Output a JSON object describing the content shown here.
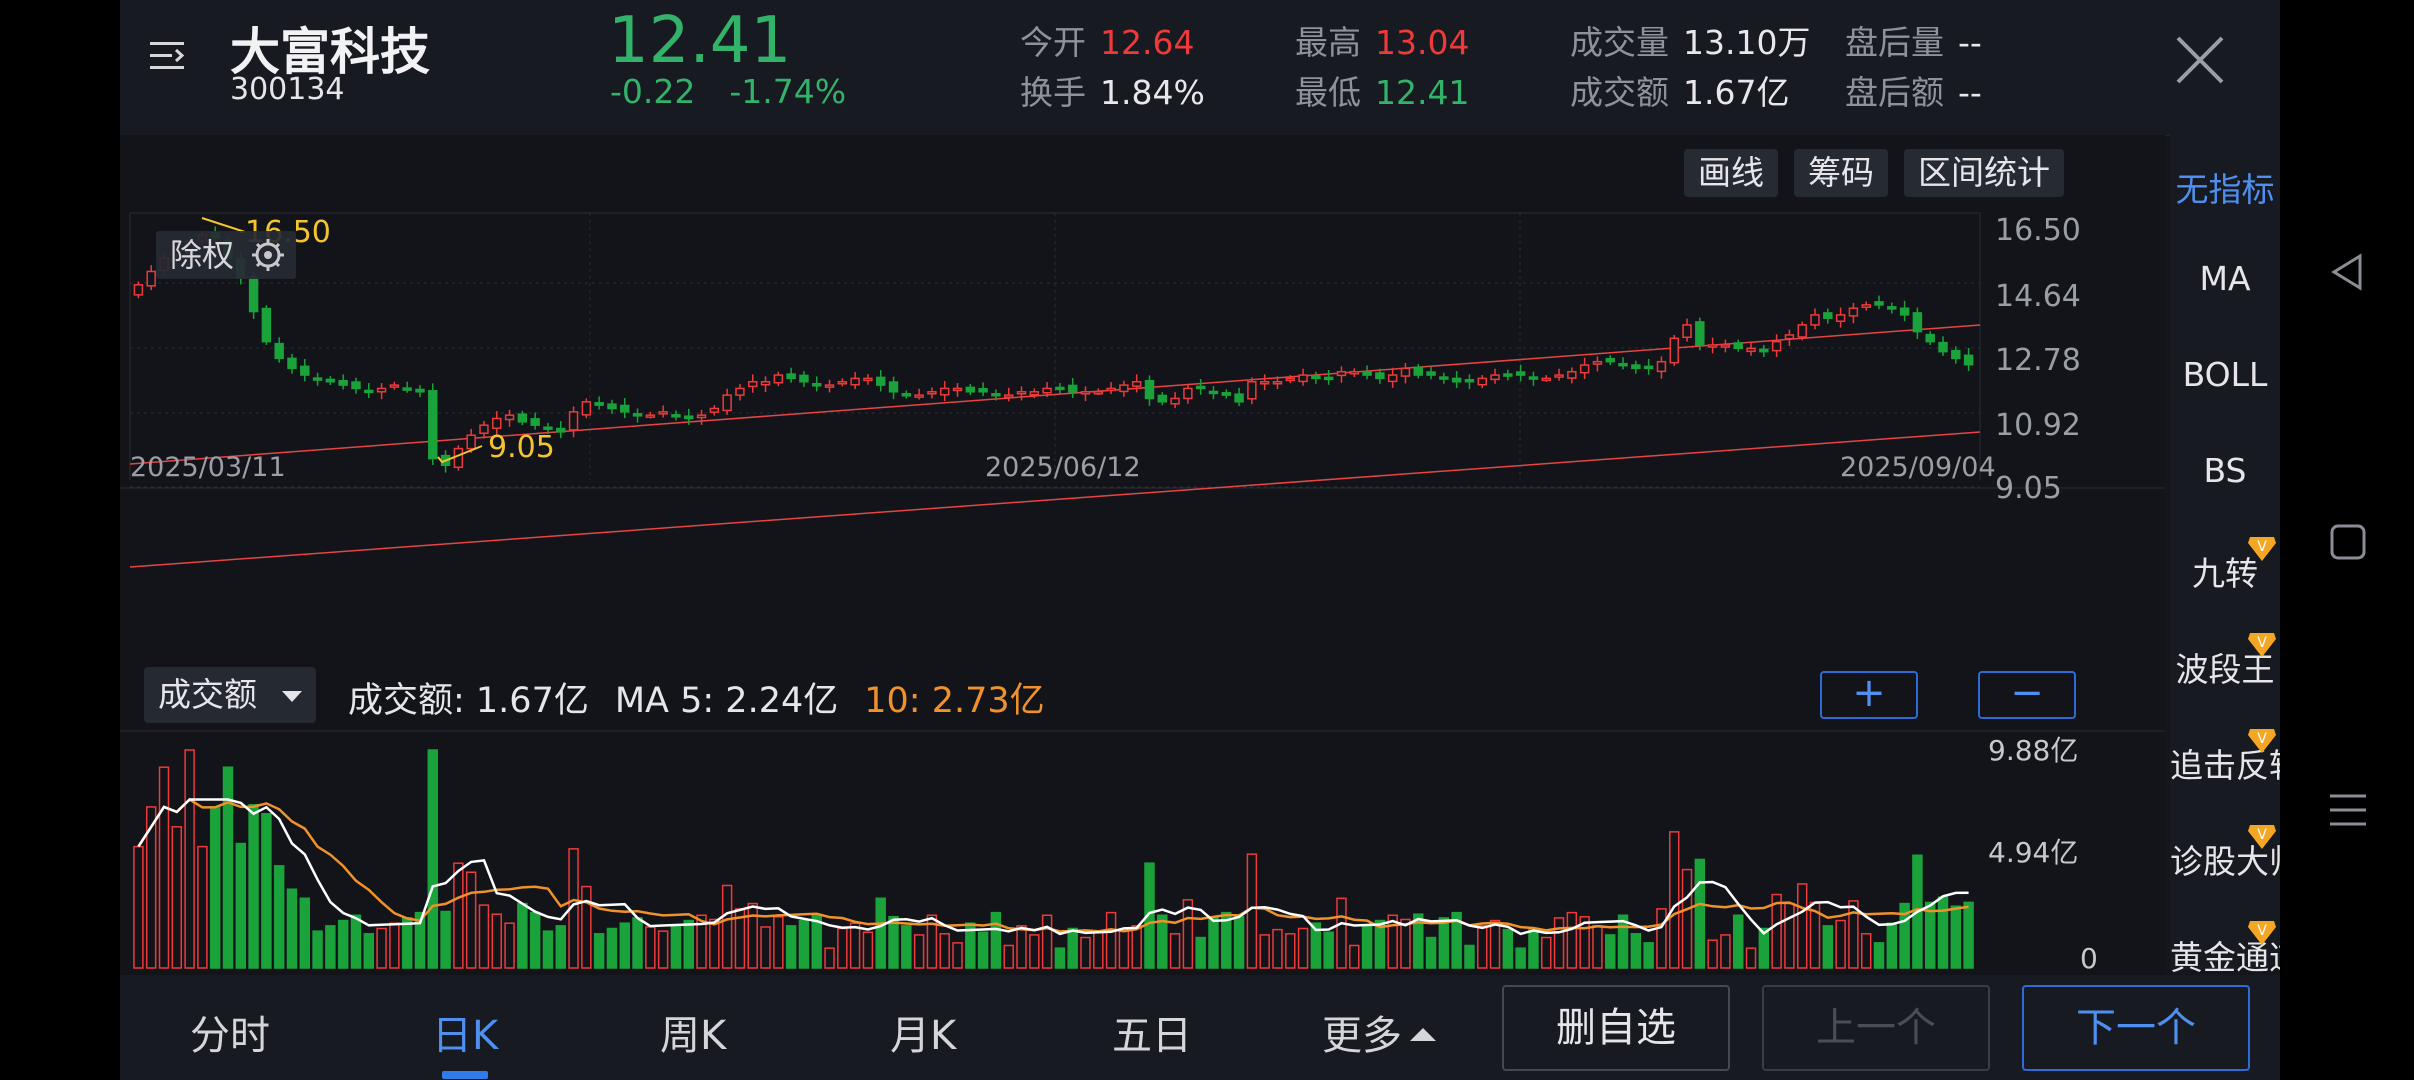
{
  "header": {
    "stock_name": "大富科技",
    "stock_code": "300134",
    "price": "12.41",
    "change": "-0.22",
    "change_pct": "-1.74%",
    "stats": {
      "open": {
        "label": "今开",
        "value": "12.64"
      },
      "turnover_rate": {
        "label": "换手",
        "value": "1.84%"
      },
      "high": {
        "label": "最高",
        "value": "13.04"
      },
      "low": {
        "label": "最低",
        "value": "12.41"
      },
      "volume": {
        "label": "成交量",
        "value": "13.10万"
      },
      "amount": {
        "label": "成交额",
        "value": "1.67亿"
      },
      "after_volume": {
        "label": "盘后量",
        "value": "--"
      },
      "after_amount": {
        "label": "盘后额",
        "value": "--"
      }
    }
  },
  "toolbar": {
    "draw": "画线",
    "chips": "筹码",
    "range_stats": "区间统计"
  },
  "kline": {
    "adjust_label": "除权",
    "y_ticks": [
      "16.50",
      "14.64",
      "12.78",
      "10.92",
      "9.05"
    ],
    "x_ticks": [
      "2025/03/11",
      "2025/06/12",
      "2025/09/04"
    ],
    "max_label": "16.50",
    "min_label": "9.05"
  },
  "volume": {
    "selector": "成交额",
    "info_label": "成交额: 1.67亿",
    "ma5": "MA 5: 2.24亿",
    "ma10": "10: 2.73亿",
    "y_ticks": [
      "9.88亿",
      "4.94亿",
      "0"
    ],
    "zoom_in": "+",
    "zoom_out": "−"
  },
  "indicators": [
    "无指标",
    "MA",
    "BOLL",
    "BS",
    "九转",
    "波段王",
    "追击反转",
    "诊股大师",
    "黄金通道"
  ],
  "nav": {
    "tabs": [
      "分时",
      "日K",
      "周K",
      "月K",
      "五日",
      "更多"
    ],
    "delete_watch": "删自选",
    "prev": "上一个",
    "next": "下一个"
  },
  "colors": {
    "up": "#ee3a3a",
    "down": "#1aa33a",
    "accent": "#4f8ff0",
    "ma10": "#f0922b",
    "ma5": "#ffffff",
    "label": "#f4c430"
  },
  "chart_data": {
    "type": "candlestick",
    "ylim": [
      9.05,
      16.5
    ],
    "closes": [
      14.8,
      15.2,
      15.6,
      15.8,
      16.1,
      16.3,
      16.2,
      15.6,
      15.0,
      14.0,
      13.1,
      12.6,
      12.3,
      12.1,
      12.0,
      11.9,
      11.8,
      11.7,
      11.6,
      11.7,
      11.8,
      11.7,
      11.6,
      9.6,
      9.4,
      9.9,
      10.3,
      10.6,
      10.8,
      10.9,
      10.7,
      10.6,
      10.5,
      10.4,
      11.0,
      11.3,
      11.2,
      11.1,
      11.0,
      10.9,
      10.9,
      11.0,
      10.9,
      10.8,
      10.9,
      11.1,
      11.5,
      11.7,
      11.9,
      11.9,
      12.1,
      12.0,
      11.9,
      11.8,
      11.8,
      11.9,
      12.0,
      12.0,
      11.8,
      11.6,
      11.5,
      11.5,
      11.6,
      11.7,
      11.7,
      11.6,
      11.6,
      11.5,
      11.5,
      11.6,
      11.6,
      11.7,
      11.7,
      11.6,
      11.6,
      11.6,
      11.7,
      11.8,
      11.9,
      11.4,
      11.3,
      11.4,
      11.7,
      11.7,
      11.6,
      11.5,
      11.3,
      11.9,
      11.9,
      11.9,
      12.0,
      12.1,
      12.0,
      12.0,
      12.2,
      12.2,
      12.1,
      12.0,
      12.1,
      12.3,
      12.1,
      12.1,
      12.0,
      11.9,
      11.9,
      12.0,
      12.1,
      12.1,
      12.1,
      12.0,
      12.0,
      12.1,
      12.2,
      12.4,
      12.5,
      12.5,
      12.4,
      12.3,
      12.3,
      12.5,
      13.2,
      13.6,
      13.0,
      13.0,
      13.0,
      12.9,
      12.9,
      12.8,
      13.1,
      13.3,
      13.6,
      13.9,
      13.8,
      13.9,
      14.1,
      14.2,
      14.2,
      14.1,
      13.9,
      13.4,
      13.1,
      12.8,
      12.6,
      12.41
    ]
  }
}
